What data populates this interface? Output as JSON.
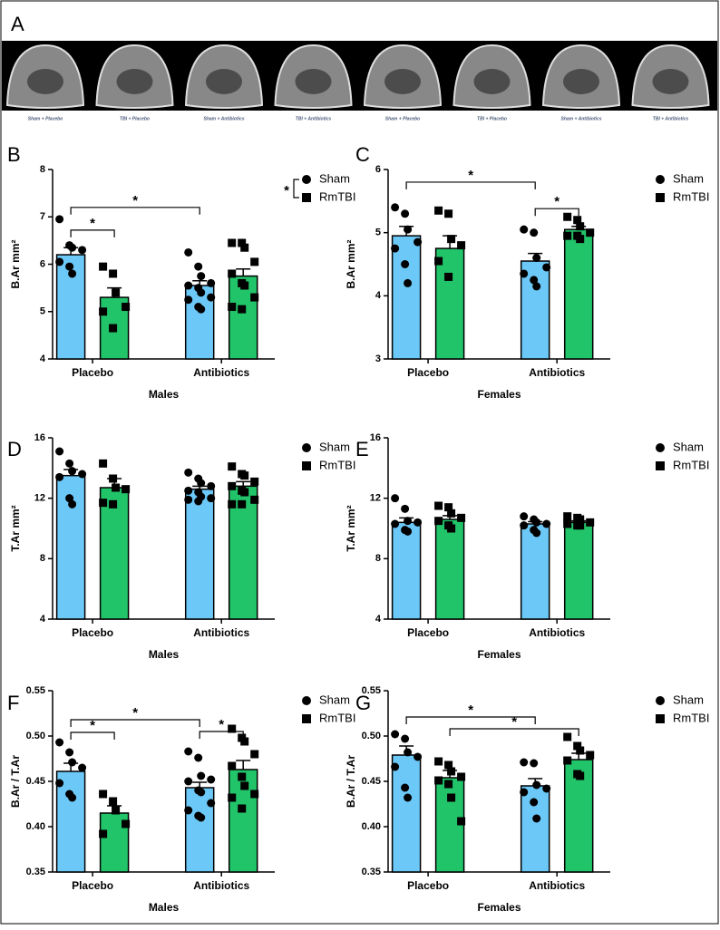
{
  "figure": {
    "panel_a": {
      "label": "A",
      "captions": [
        "Sham + Placebo",
        "TBI + Placebo",
        "Sham + Antibiotics",
        "TBI + Antibiotics",
        "Sham + Placebo",
        "TBI + Placebo",
        "Sham + Antibiotics",
        "TBI + Antibiotics"
      ]
    }
  },
  "chart_data": [
    {
      "type": "bar",
      "panel": "B",
      "xlabel": "Males",
      "ylabel": "B.Ar mm²",
      "categories": [
        "Placebo",
        "Antibiotics"
      ],
      "series": [
        {
          "name": "Sham",
          "color": "#6cc8f7",
          "marker": "circle",
          "values": [
            6.2,
            5.55
          ],
          "errors": [
            0.15,
            0.1
          ],
          "points": [
            [
              6.95,
              6.4,
              6.35,
              6.3,
              6.05,
              5.95,
              5.8
            ],
            [
              6.25,
              5.95,
              5.75,
              5.6,
              5.55,
              5.5,
              5.4,
              5.3,
              5.25,
              5.1,
              5.05
            ]
          ]
        },
        {
          "name": "RmTBI",
          "color": "#22c46a",
          "marker": "square",
          "values": [
            5.3,
            5.75
          ],
          "errors": [
            0.2,
            0.15
          ],
          "points": [
            [
              5.95,
              5.8,
              5.4,
              5.1,
              5.0,
              4.65
            ],
            [
              6.45,
              6.45,
              6.35,
              6.05,
              5.8,
              5.6,
              5.55,
              5.3,
              5.1,
              5.05
            ]
          ]
        }
      ],
      "ylim": [
        4,
        8
      ],
      "yticks": [
        4,
        5,
        6,
        7,
        8
      ],
      "brackets": [
        {
          "label": "*",
          "y": 6.72,
          "from": [
            0,
            0
          ],
          "to": [
            0,
            1
          ]
        },
        {
          "label": "*",
          "y": 7.2,
          "from": [
            0,
            0
          ],
          "to": [
            1,
            0
          ]
        }
      ],
      "legend_annotation": "*"
    },
    {
      "type": "bar",
      "panel": "C",
      "xlabel": "Females",
      "ylabel": "B.Ar mm²",
      "categories": [
        "Placebo",
        "Antibiotics"
      ],
      "series": [
        {
          "name": "Sham",
          "color": "#6cc8f7",
          "marker": "circle",
          "values": [
            4.95,
            4.55
          ],
          "errors": [
            0.15,
            0.12
          ],
          "points": [
            [
              5.4,
              5.3,
              5.05,
              4.85,
              4.75,
              4.5,
              4.2
            ],
            [
              5.05,
              5.0,
              4.6,
              4.45,
              4.35,
              4.25,
              4.15
            ]
          ]
        },
        {
          "name": "RmTBI",
          "color": "#22c46a",
          "marker": "square",
          "values": [
            4.75,
            5.05
          ],
          "errors": [
            0.2,
            0.05
          ],
          "points": [
            [
              5.35,
              5.3,
              4.9,
              4.8,
              4.55,
              4.3
            ],
            [
              5.25,
              5.2,
              5.1,
              5.0,
              4.95,
              4.95,
              4.9
            ]
          ]
        }
      ],
      "ylim": [
        3,
        6
      ],
      "yticks": [
        3,
        4,
        5,
        6
      ],
      "brackets": [
        {
          "label": "*",
          "y": 5.8,
          "from": [
            0,
            0
          ],
          "to": [
            1,
            0
          ]
        },
        {
          "label": "*",
          "y": 5.38,
          "from": [
            1,
            0
          ],
          "to": [
            1,
            1
          ]
        }
      ]
    },
    {
      "type": "bar",
      "panel": "D",
      "xlabel": "Males",
      "ylabel": "T.Ar mm²",
      "categories": [
        "Placebo",
        "Antibiotics"
      ],
      "series": [
        {
          "name": "Sham",
          "color": "#6cc8f7",
          "marker": "circle",
          "values": [
            13.5,
            12.6
          ],
          "errors": [
            0.4,
            0.2
          ],
          "points": [
            [
              15.1,
              14.3,
              13.8,
              13.6,
              13.4,
              12.0,
              11.6
            ],
            [
              13.7,
              13.3,
              13.0,
              12.8,
              12.5,
              12.4,
              12.1,
              12.0,
              11.9,
              11.8
            ]
          ]
        },
        {
          "name": "RmTBI",
          "color": "#22c46a",
          "marker": "square",
          "values": [
            12.7,
            12.8
          ],
          "errors": [
            0.6,
            0.3
          ],
          "points": [
            [
              14.3,
              13.3,
              12.7,
              12.6,
              11.7,
              11.6
            ],
            [
              14.1,
              13.6,
              13.5,
              13.1,
              12.8,
              12.5,
              12.4,
              11.9,
              11.6,
              11.6
            ]
          ]
        }
      ],
      "ylim": [
        4,
        16
      ],
      "yticks": [
        4,
        8,
        12,
        16
      ]
    },
    {
      "type": "bar",
      "panel": "E",
      "xlabel": "Females",
      "ylabel": "T.Ar mm²",
      "categories": [
        "Placebo",
        "Antibiotics"
      ],
      "series": [
        {
          "name": "Sham",
          "color": "#6cc8f7",
          "marker": "circle",
          "values": [
            10.4,
            10.3
          ],
          "errors": [
            0.3,
            0.15
          ],
          "points": [
            [
              12.0,
              11.3,
              10.5,
              10.4,
              10.3,
              9.9,
              9.8
            ],
            [
              10.8,
              10.6,
              10.4,
              10.3,
              10.2,
              9.9,
              9.7
            ]
          ]
        },
        {
          "name": "RmTBI",
          "color": "#22c46a",
          "marker": "square",
          "values": [
            10.6,
            10.4
          ],
          "errors": [
            0.25,
            0.1
          ],
          "points": [
            [
              11.5,
              11.4,
              11.0,
              10.7,
              10.5,
              10.2,
              10.0
            ],
            [
              10.8,
              10.7,
              10.6,
              10.4,
              10.3,
              10.2,
              10.2
            ]
          ]
        }
      ],
      "ylim": [
        4,
        16
      ],
      "yticks": [
        4,
        8,
        12,
        16
      ]
    },
    {
      "type": "bar",
      "panel": "F",
      "xlabel": "Males",
      "ylabel": "B.Ar / T.Ar",
      "categories": [
        "Placebo",
        "Antibiotics"
      ],
      "series": [
        {
          "name": "Sham",
          "color": "#6cc8f7",
          "marker": "circle",
          "values": [
            0.461,
            0.443
          ],
          "errors": [
            0.009,
            0.006
          ],
          "points": [
            [
              0.493,
              0.482,
              0.471,
              0.465,
              0.448,
              0.436,
              0.432
            ],
            [
              0.483,
              0.476,
              0.456,
              0.452,
              0.45,
              0.44,
              0.438,
              0.426,
              0.418,
              0.412,
              0.41
            ]
          ]
        },
        {
          "name": "RmTBI",
          "color": "#22c46a",
          "marker": "square",
          "values": [
            0.415,
            0.463
          ],
          "errors": [
            0.008,
            0.01
          ],
          "points": [
            [
              0.436,
              0.428,
              0.418,
              0.403,
              0.392
            ],
            [
              0.508,
              0.498,
              0.494,
              0.48,
              0.467,
              0.455,
              0.445,
              0.436,
              0.432,
              0.42
            ]
          ]
        }
      ],
      "ylim": [
        0.35,
        0.55
      ],
      "yticks": [
        0.35,
        {
          "value": 0.4,
          "label": "0.40"
        },
        0.45,
        {
          "value": 0.5,
          "label": "0.50"
        },
        0.55
      ],
      "brackets": [
        {
          "label": "*",
          "y": 0.504,
          "from": [
            0,
            0
          ],
          "to": [
            0,
            1
          ]
        },
        {
          "label": "*",
          "y": 0.518,
          "from": [
            0,
            0
          ],
          "to": [
            1,
            0
          ]
        },
        {
          "label": "*",
          "y": 0.505,
          "from": [
            1,
            0
          ],
          "to": [
            1,
            1
          ]
        }
      ]
    },
    {
      "type": "bar",
      "panel": "G",
      "xlabel": "Females",
      "ylabel": "B.Ar / T.Ar",
      "categories": [
        "Placebo",
        "Antibiotics"
      ],
      "series": [
        {
          "name": "Sham",
          "color": "#6cc8f7",
          "marker": "circle",
          "values": [
            0.479,
            0.445
          ],
          "errors": [
            0.01,
            0.008
          ],
          "points": [
            [
              0.502,
              0.497,
              0.482,
              0.477,
              0.466,
              0.443,
              0.432
            ],
            [
              0.471,
              0.47,
              0.446,
              0.442,
              0.438,
              0.427,
              0.409
            ]
          ]
        },
        {
          "name": "RmTBI",
          "color": "#22c46a",
          "marker": "square",
          "values": [
            0.454,
            0.474
          ],
          "errors": [
            0.008,
            0.007
          ],
          "points": [
            [
              0.472,
              0.468,
              0.461,
              0.455,
              0.451,
              0.447,
              0.432,
              0.406
            ],
            [
              0.499,
              0.489,
              0.484,
              0.479,
              0.473,
              0.458,
              0.456
            ]
          ]
        }
      ],
      "ylim": [
        0.35,
        0.55
      ],
      "yticks": [
        0.35,
        {
          "value": 0.4,
          "label": "0.40"
        },
        0.45,
        {
          "value": 0.5,
          "label": "0.50"
        },
        0.55
      ],
      "brackets": [
        {
          "label": "*",
          "y": 0.521,
          "from": [
            0,
            0
          ],
          "to": [
            1,
            0
          ]
        },
        {
          "label": "*",
          "y": 0.508,
          "from": [
            0,
            1
          ],
          "to": [
            1,
            1
          ]
        }
      ]
    }
  ]
}
